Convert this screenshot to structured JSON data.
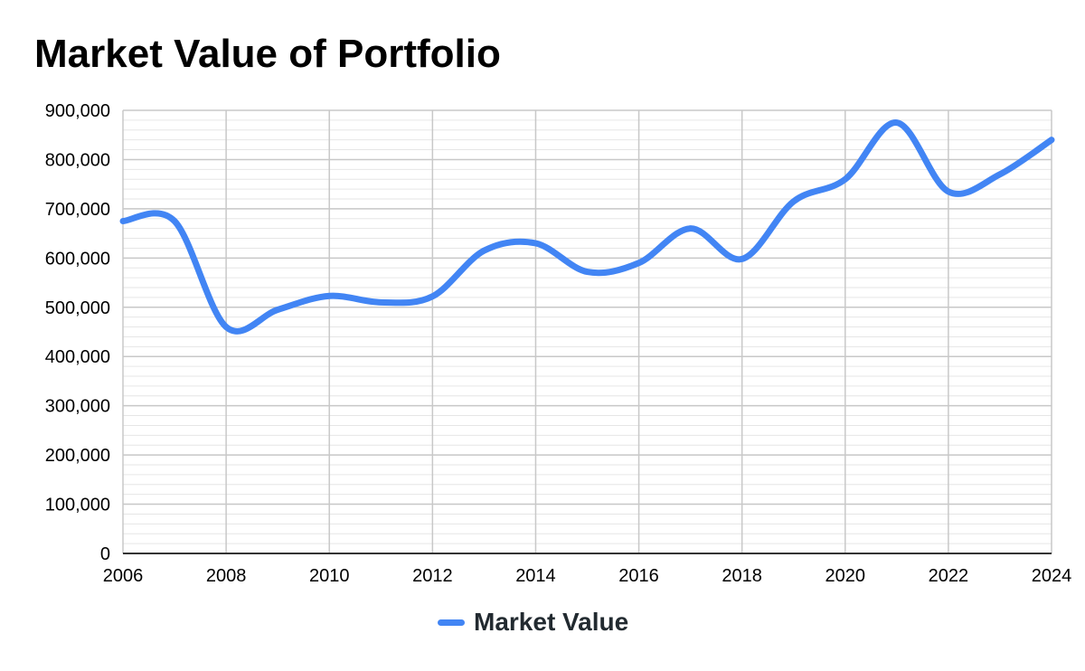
{
  "chart_data": {
    "type": "line",
    "title": "Market Value of Portfolio",
    "xlabel": "",
    "ylabel": "",
    "xlim": [
      2006,
      2024
    ],
    "ylim": [
      0,
      900000
    ],
    "x_ticks": [
      "2006",
      "2008",
      "2010",
      "2012",
      "2014",
      "2016",
      "2018",
      "2020",
      "2022",
      "2024"
    ],
    "y_ticks": [
      "0",
      "100,000",
      "200,000",
      "300,000",
      "400,000",
      "500,000",
      "600,000",
      "700,000",
      "800,000",
      "900,000"
    ],
    "grid": true,
    "legend_position": "bottom",
    "series": [
      {
        "name": "Market Value",
        "color": "#4285f4",
        "x": [
          2006,
          2007,
          2008,
          2009,
          2010,
          2011,
          2012,
          2013,
          2014,
          2015,
          2016,
          2017,
          2018,
          2019,
          2020,
          2021,
          2022,
          2023,
          2024
        ],
        "values": [
          675000,
          675000,
          460000,
          495000,
          523000,
          510000,
          522000,
          615000,
          630000,
          572000,
          590000,
          660000,
          598000,
          715000,
          760000,
          875000,
          735000,
          770000,
          840000
        ]
      }
    ]
  }
}
